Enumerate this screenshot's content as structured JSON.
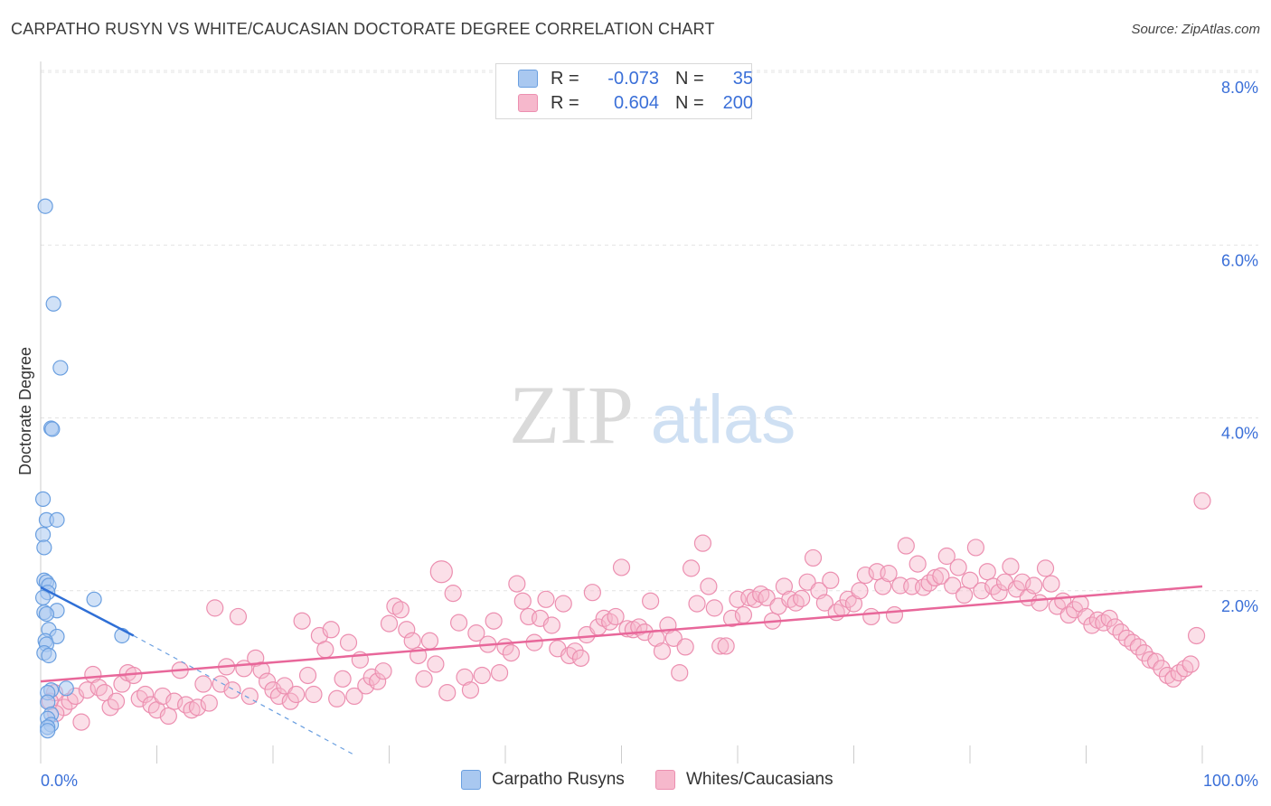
{
  "header": {
    "title": "CARPATHO RUSYN VS WHITE/CAUCASIAN DOCTORATE DEGREE CORRELATION CHART",
    "source": "Source: ZipAtlas.com"
  },
  "watermark": {
    "zip": "ZIP",
    "atlas": "atlas"
  },
  "legend_top": {
    "rows": [
      {
        "r_label": "R =",
        "r_value": "-0.073",
        "n_label": "N =",
        "n_value": "35"
      },
      {
        "r_label": "R =",
        "r_value": "0.604",
        "n_label": "N =",
        "n_value": "200"
      }
    ]
  },
  "legend_bottom": {
    "items": [
      "Carpatho Rusyns",
      "Whites/Caucasians"
    ]
  },
  "colors": {
    "blue_fill": "#a9c8f0",
    "blue_stroke": "#6a9fe0",
    "blue_line": "#2f6fd6",
    "pink_fill": "#f6b8cc",
    "pink_stroke": "#ec8fb0",
    "pink_line": "#e8679a",
    "axis_text": "#3a6fd8",
    "grid": "#e4e4e4"
  },
  "chart_data": {
    "type": "scatter",
    "title": "CARPATHO RUSYN VS WHITE/CAUCASIAN DOCTORATE DEGREE CORRELATION CHART",
    "xlabel": "",
    "ylabel": "Doctorate Degree",
    "xlim": [
      0,
      100
    ],
    "ylim": [
      0,
      8
    ],
    "x_tick_labels": [
      "0.0%",
      "100.0%"
    ],
    "y_ticks": [
      2,
      4,
      6,
      8
    ],
    "y_tick_labels": [
      "2.0%",
      "4.0%",
      "6.0%",
      "8.0%"
    ],
    "grid": true,
    "legend_position": "top-center",
    "series": [
      {
        "name": "Carpatho Rusyns",
        "R": -0.073,
        "N": 35,
        "trend": {
          "x": [
            0,
            8
          ],
          "y": [
            2.04,
            1.48
          ]
        },
        "trend_dashed": {
          "x": [
            8,
            27
          ],
          "y": [
            1.48,
            0.1
          ]
        },
        "points": [
          [
            0.4,
            6.45
          ],
          [
            1.1,
            5.32
          ],
          [
            1.7,
            4.58
          ],
          [
            0.9,
            3.88
          ],
          [
            1.0,
            3.87
          ],
          [
            0.2,
            3.06
          ],
          [
            0.5,
            2.82
          ],
          [
            1.4,
            2.82
          ],
          [
            0.2,
            2.65
          ],
          [
            0.3,
            2.5
          ],
          [
            0.3,
            2.12
          ],
          [
            0.5,
            2.1
          ],
          [
            0.7,
            2.06
          ],
          [
            0.6,
            1.98
          ],
          [
            0.2,
            1.92
          ],
          [
            4.6,
            1.9
          ],
          [
            1.4,
            1.77
          ],
          [
            0.3,
            1.75
          ],
          [
            0.5,
            1.73
          ],
          [
            0.7,
            1.55
          ],
          [
            1.4,
            1.47
          ],
          [
            0.4,
            1.42
          ],
          [
            0.5,
            1.38
          ],
          [
            7.0,
            1.48
          ],
          [
            0.3,
            1.28
          ],
          [
            0.7,
            1.25
          ],
          [
            2.2,
            0.87
          ],
          [
            0.9,
            0.85
          ],
          [
            0.6,
            0.82
          ],
          [
            0.6,
            0.71
          ],
          [
            0.9,
            0.57
          ],
          [
            0.6,
            0.52
          ],
          [
            0.9,
            0.45
          ],
          [
            0.6,
            0.42
          ],
          [
            0.6,
            0.38
          ]
        ]
      },
      {
        "name": "Whites/Caucasians",
        "R": 0.604,
        "N": 200,
        "trend": {
          "x": [
            0,
            100
          ],
          "y": [
            0.95,
            2.05
          ]
        },
        "points": [
          [
            2.0,
            0.65
          ],
          [
            1.2,
            0.82
          ],
          [
            0.8,
            0.72
          ],
          [
            1.3,
            0.58
          ],
          [
            3.5,
            0.48
          ],
          [
            2.5,
            0.72
          ],
          [
            3.0,
            0.78
          ],
          [
            4.0,
            0.85
          ],
          [
            4.5,
            1.03
          ],
          [
            5.0,
            0.88
          ],
          [
            5.5,
            0.82
          ],
          [
            6.0,
            0.65
          ],
          [
            6.5,
            0.72
          ],
          [
            7.0,
            0.92
          ],
          [
            7.5,
            1.05
          ],
          [
            8.0,
            1.02
          ],
          [
            8.5,
            0.75
          ],
          [
            9.0,
            0.8
          ],
          [
            9.5,
            0.68
          ],
          [
            10.0,
            0.62
          ],
          [
            10.5,
            0.78
          ],
          [
            11.0,
            0.55
          ],
          [
            11.5,
            0.72
          ],
          [
            12.0,
            1.08
          ],
          [
            12.5,
            0.68
          ],
          [
            13.0,
            0.62
          ],
          [
            13.5,
            0.65
          ],
          [
            14.0,
            0.92
          ],
          [
            14.5,
            0.7
          ],
          [
            15.0,
            1.8
          ],
          [
            15.5,
            0.92
          ],
          [
            16.0,
            1.12
          ],
          [
            16.5,
            0.85
          ],
          [
            17.0,
            1.7
          ],
          [
            17.5,
            1.1
          ],
          [
            18.0,
            0.78
          ],
          [
            18.5,
            1.22
          ],
          [
            19.0,
            1.08
          ],
          [
            19.5,
            0.95
          ],
          [
            20.0,
            0.85
          ],
          [
            20.5,
            0.78
          ],
          [
            21.0,
            0.9
          ],
          [
            21.5,
            0.72
          ],
          [
            22.0,
            0.8
          ],
          [
            22.5,
            1.65
          ],
          [
            23.0,
            1.02
          ],
          [
            23.5,
            0.8
          ],
          [
            24.0,
            1.48
          ],
          [
            24.5,
            1.32
          ],
          [
            25.0,
            1.55
          ],
          [
            25.5,
            0.75
          ],
          [
            26.0,
            0.98
          ],
          [
            26.5,
            1.4
          ],
          [
            27.0,
            0.78
          ],
          [
            27.5,
            1.2
          ],
          [
            28.0,
            0.9
          ],
          [
            28.5,
            1.0
          ],
          [
            29.0,
            0.95
          ],
          [
            29.5,
            1.07
          ],
          [
            30.0,
            1.62
          ],
          [
            30.5,
            1.82
          ],
          [
            31.0,
            1.78
          ],
          [
            31.5,
            1.55
          ],
          [
            32.0,
            1.42
          ],
          [
            32.5,
            1.25
          ],
          [
            33.0,
            0.98
          ],
          [
            33.5,
            1.42
          ],
          [
            34.0,
            1.15
          ],
          [
            34.5,
            2.22
          ],
          [
            35.0,
            0.82
          ],
          [
            35.5,
            1.97
          ],
          [
            36.0,
            1.63
          ],
          [
            36.5,
            1.0
          ],
          [
            37.0,
            0.85
          ],
          [
            37.5,
            1.51
          ],
          [
            38.0,
            1.02
          ],
          [
            38.5,
            1.38
          ],
          [
            39.0,
            1.65
          ],
          [
            39.5,
            1.05
          ],
          [
            40.0,
            1.35
          ],
          [
            40.5,
            1.28
          ],
          [
            41.0,
            2.08
          ],
          [
            41.5,
            1.88
          ],
          [
            42.0,
            1.7
          ],
          [
            42.5,
            1.4
          ],
          [
            43.0,
            1.68
          ],
          [
            43.5,
            1.9
          ],
          [
            44.0,
            1.6
          ],
          [
            44.5,
            1.33
          ],
          [
            45.0,
            1.85
          ],
          [
            45.5,
            1.25
          ],
          [
            46.0,
            1.3
          ],
          [
            46.5,
            1.22
          ],
          [
            47.0,
            1.49
          ],
          [
            47.5,
            1.98
          ],
          [
            48.0,
            1.58
          ],
          [
            48.5,
            1.68
          ],
          [
            49.0,
            1.64
          ],
          [
            49.5,
            1.7
          ],
          [
            50.0,
            2.27
          ],
          [
            50.5,
            1.56
          ],
          [
            51.0,
            1.55
          ],
          [
            51.5,
            1.58
          ],
          [
            52.0,
            1.52
          ],
          [
            52.5,
            1.88
          ],
          [
            53.0,
            1.45
          ],
          [
            53.5,
            1.3
          ],
          [
            54.0,
            1.6
          ],
          [
            54.5,
            1.45
          ],
          [
            55.0,
            1.05
          ],
          [
            55.5,
            1.35
          ],
          [
            56.0,
            2.26
          ],
          [
            56.5,
            1.85
          ],
          [
            57.0,
            2.55
          ],
          [
            57.5,
            2.05
          ],
          [
            58.0,
            1.8
          ],
          [
            58.5,
            1.36
          ],
          [
            59.0,
            1.36
          ],
          [
            59.5,
            1.68
          ],
          [
            60.0,
            1.9
          ],
          [
            60.5,
            1.72
          ],
          [
            61.0,
            1.92
          ],
          [
            61.5,
            1.9
          ],
          [
            62.0,
            1.96
          ],
          [
            62.5,
            1.92
          ],
          [
            63.0,
            1.65
          ],
          [
            63.5,
            1.82
          ],
          [
            64.0,
            2.05
          ],
          [
            64.5,
            1.9
          ],
          [
            65.0,
            1.86
          ],
          [
            65.5,
            1.91
          ],
          [
            66.0,
            2.1
          ],
          [
            66.5,
            2.38
          ],
          [
            67.0,
            2.0
          ],
          [
            67.5,
            1.86
          ],
          [
            68.0,
            2.12
          ],
          [
            68.5,
            1.75
          ],
          [
            69.0,
            1.8
          ],
          [
            69.5,
            1.9
          ],
          [
            70.0,
            1.85
          ],
          [
            70.5,
            2.0
          ],
          [
            71.0,
            2.18
          ],
          [
            71.5,
            1.7
          ],
          [
            72.0,
            2.22
          ],
          [
            72.5,
            2.05
          ],
          [
            73.0,
            2.2
          ],
          [
            73.5,
            1.72
          ],
          [
            74.0,
            2.06
          ],
          [
            74.5,
            2.52
          ],
          [
            75.0,
            2.05
          ],
          [
            75.5,
            2.31
          ],
          [
            76.0,
            2.04
          ],
          [
            76.5,
            2.09
          ],
          [
            77.0,
            2.15
          ],
          [
            77.5,
            2.17
          ],
          [
            78.0,
            2.4
          ],
          [
            78.5,
            2.06
          ],
          [
            79.0,
            2.27
          ],
          [
            79.5,
            1.95
          ],
          [
            80.0,
            2.12
          ],
          [
            80.5,
            2.5
          ],
          [
            81.0,
            2.0
          ],
          [
            81.5,
            2.22
          ],
          [
            82.0,
            2.05
          ],
          [
            82.5,
            1.98
          ],
          [
            83.0,
            2.1
          ],
          [
            83.5,
            2.28
          ],
          [
            84.0,
            2.02
          ],
          [
            84.5,
            2.1
          ],
          [
            85.0,
            1.92
          ],
          [
            85.5,
            2.06
          ],
          [
            86.0,
            1.86
          ],
          [
            86.5,
            2.26
          ],
          [
            87.0,
            2.08
          ],
          [
            87.5,
            1.82
          ],
          [
            88.0,
            1.88
          ],
          [
            88.5,
            1.72
          ],
          [
            89.0,
            1.78
          ],
          [
            89.5,
            1.85
          ],
          [
            90.0,
            1.7
          ],
          [
            90.5,
            1.6
          ],
          [
            91.0,
            1.66
          ],
          [
            91.5,
            1.63
          ],
          [
            92.0,
            1.68
          ],
          [
            92.5,
            1.58
          ],
          [
            93.0,
            1.52
          ],
          [
            93.5,
            1.45
          ],
          [
            94.0,
            1.4
          ],
          [
            94.5,
            1.35
          ],
          [
            95.0,
            1.28
          ],
          [
            95.5,
            1.2
          ],
          [
            96.0,
            1.18
          ],
          [
            96.5,
            1.1
          ],
          [
            97.0,
            1.02
          ],
          [
            97.5,
            0.98
          ],
          [
            98.0,
            1.05
          ],
          [
            98.5,
            1.1
          ],
          [
            99.0,
            1.15
          ],
          [
            99.5,
            1.48
          ],
          [
            100.0,
            3.04
          ]
        ]
      }
    ]
  }
}
